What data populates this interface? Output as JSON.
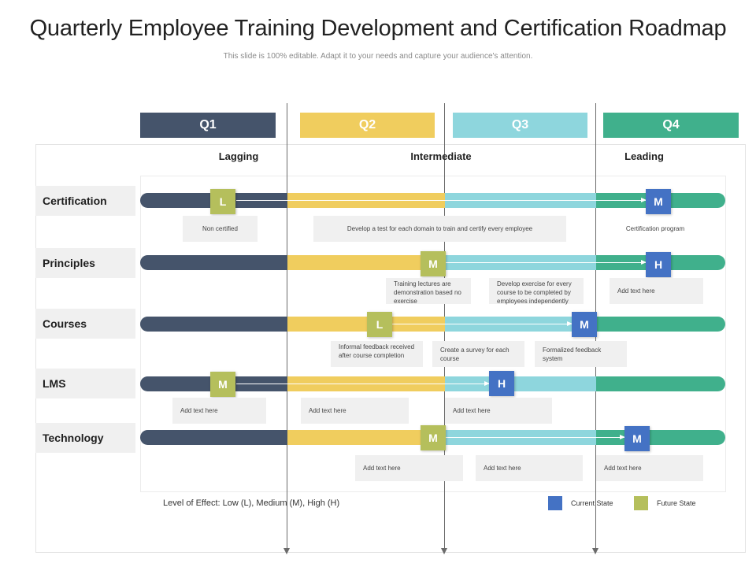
{
  "title": "Quarterly Employee Training Development and Certification Roadmap",
  "subtitle": "This slide is 100% editable. Adapt it to your needs and capture your audience's attention.",
  "colors": {
    "q1": "#45546b",
    "q2": "#f0cd5e",
    "q3": "#8ed6dd",
    "q4": "#40b08c",
    "current_state": "#4472c4",
    "future_state": "#b5bf5c"
  },
  "quarters": [
    "Q1",
    "Q2",
    "Q3",
    "Q4"
  ],
  "phases": [
    "Lagging",
    "Intermediate",
    "Leading"
  ],
  "rows": [
    {
      "label": "Certification",
      "future": "L",
      "current": "M",
      "notes": [
        "Non certified",
        "Develop a test for each domain to train and certify every employee",
        "Certification program"
      ]
    },
    {
      "label": "Principles",
      "future": "M",
      "current": "H",
      "notes": [
        "Training lectures are demonstration based no exercise",
        "Develop exercise for every course to be completed by employees independently",
        "Add text here"
      ]
    },
    {
      "label": "Courses",
      "future": "L",
      "current": "M",
      "notes": [
        "Informal feedback received after course completion",
        "Create a survey for each course",
        "Formalized feedback system"
      ]
    },
    {
      "label": "LMS",
      "future": "M",
      "current": "H",
      "notes": [
        "Add text here",
        "Add text here",
        "Add text here"
      ]
    },
    {
      "label": "Technology",
      "future": "M",
      "current": "M",
      "notes": [
        "Add text here",
        "Add text here",
        "Add text here"
      ]
    }
  ],
  "footer_note": "Level of Effect: Low (L), Medium (M), High (H)",
  "legend": {
    "current_label": "Current State",
    "future_label": "Future State"
  }
}
